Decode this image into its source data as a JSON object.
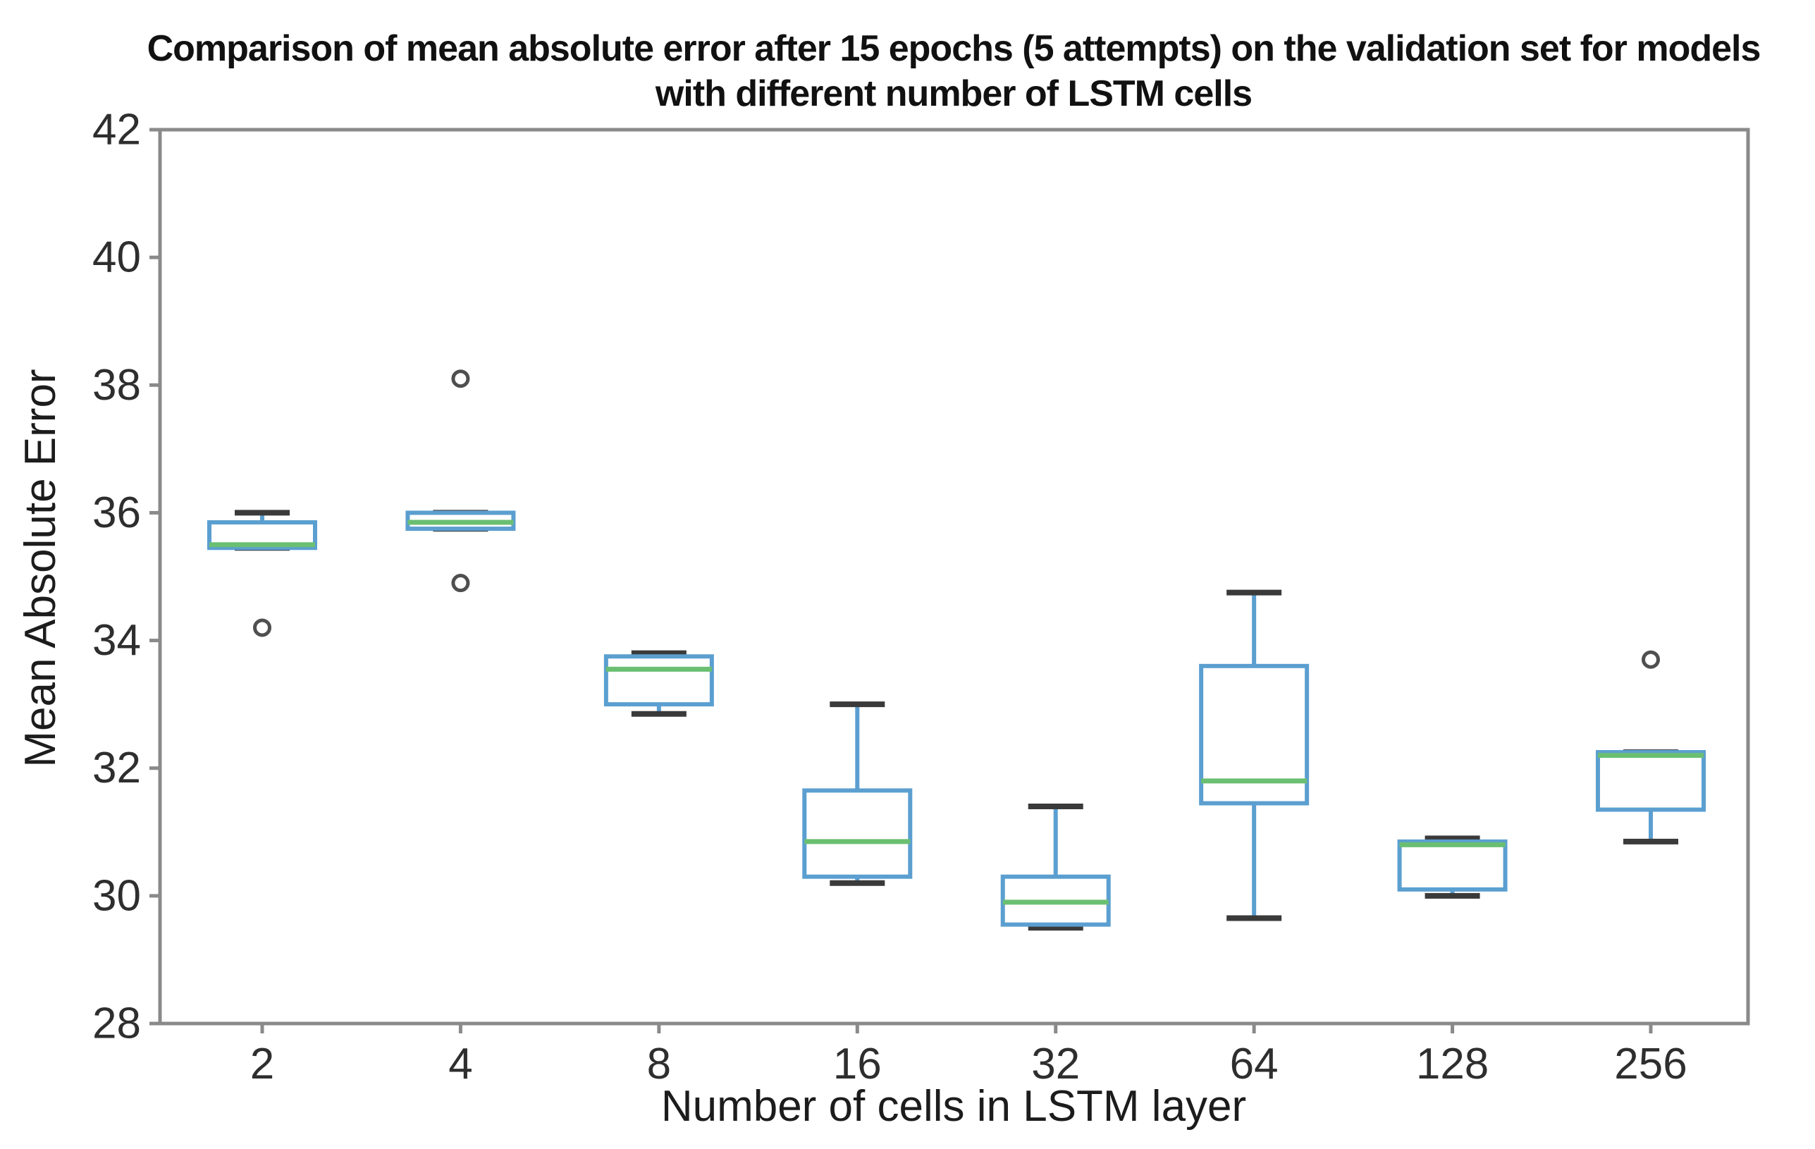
{
  "chart_data": {
    "type": "boxplot",
    "title_line1": "Comparison of mean absolute error after 15 epochs (5 attempts) on the validation set for models",
    "title_line2": "with different number of LSTM cells",
    "xlabel": "Number of cells in LSTM layer",
    "ylabel": "Mean Absolute Error",
    "categories": [
      "2",
      "4",
      "8",
      "16",
      "32",
      "64",
      "128",
      "256"
    ],
    "ylim": [
      28,
      42
    ],
    "yticks": [
      28,
      30,
      32,
      34,
      36,
      38,
      40,
      42
    ],
    "grid": false,
    "boxes": [
      {
        "category": "2",
        "values": [
          34.2,
          35.45,
          35.5,
          35.85,
          36.0
        ],
        "q1": 35.45,
        "median": 35.5,
        "q3": 35.85,
        "whisker_low": 35.45,
        "whisker_high": 36.0,
        "outliers": [
          34.2
        ]
      },
      {
        "category": "4",
        "values": [
          34.9,
          35.75,
          35.85,
          36.0,
          38.1
        ],
        "q1": 35.75,
        "median": 35.85,
        "q3": 36.0,
        "whisker_low": 35.75,
        "whisker_high": 36.0,
        "outliers": [
          38.1,
          34.9
        ]
      },
      {
        "category": "8",
        "values": [
          32.85,
          33.0,
          33.55,
          33.75,
          33.8
        ],
        "q1": 33.0,
        "median": 33.55,
        "q3": 33.75,
        "whisker_low": 32.85,
        "whisker_high": 33.8,
        "outliers": []
      },
      {
        "category": "16",
        "values": [
          30.2,
          30.3,
          30.85,
          31.65,
          33.0
        ],
        "q1": 30.3,
        "median": 30.85,
        "q3": 31.65,
        "whisker_low": 30.2,
        "whisker_high": 33.0,
        "outliers": []
      },
      {
        "category": "32",
        "values": [
          29.5,
          29.55,
          29.9,
          30.3,
          31.4
        ],
        "q1": 29.55,
        "median": 29.9,
        "q3": 30.3,
        "whisker_low": 29.5,
        "whisker_high": 31.4,
        "outliers": []
      },
      {
        "category": "64",
        "values": [
          29.65,
          31.45,
          31.8,
          33.6,
          34.75
        ],
        "q1": 31.45,
        "median": 31.8,
        "q3": 33.6,
        "whisker_low": 29.65,
        "whisker_high": 34.75,
        "outliers": []
      },
      {
        "category": "128",
        "values": [
          30.0,
          30.1,
          30.8,
          30.85,
          30.9
        ],
        "q1": 30.1,
        "median": 30.8,
        "q3": 30.85,
        "whisker_low": 30.0,
        "whisker_high": 30.9,
        "outliers": []
      },
      {
        "category": "256",
        "values": [
          30.85,
          31.35,
          32.2,
          32.25,
          33.7
        ],
        "q1": 31.35,
        "median": 32.2,
        "q3": 32.25,
        "whisker_low": 30.85,
        "whisker_high": 32.25,
        "outliers": [
          33.7
        ]
      }
    ],
    "colors": {
      "box": "#5b9fd0",
      "median": "#6abf72",
      "cap": "#3a3a3a",
      "outlier": "#4f4f4f",
      "spine": "#8a8a8a",
      "text": "#2e2e2e"
    }
  }
}
